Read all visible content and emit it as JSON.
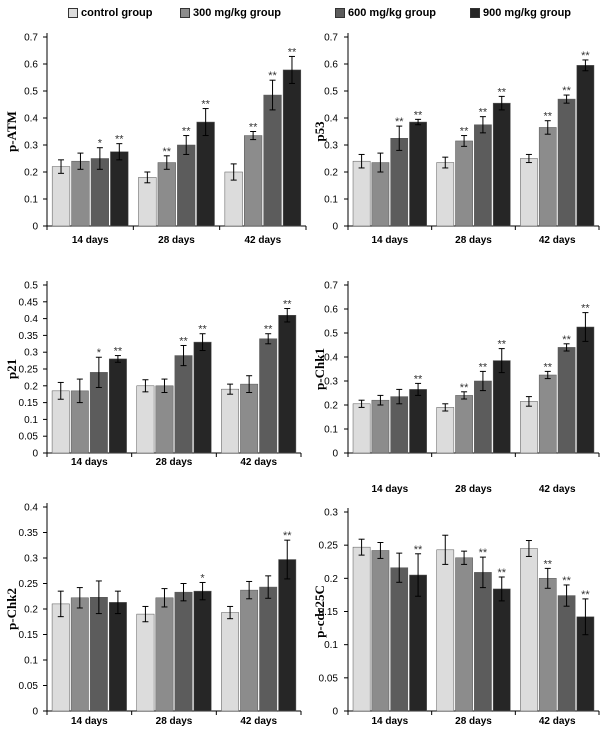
{
  "legend": [
    {
      "label": "control group",
      "color": "#dcdcdc"
    },
    {
      "label": "300 mg/kg group",
      "color": "#8c8c8c"
    },
    {
      "label": "600 mg/kg group",
      "color": "#5c5c5c"
    },
    {
      "label": "900 mg/kg group",
      "color": "#262626"
    }
  ],
  "chart_data": [
    {
      "type": "bar",
      "title": "",
      "ylabel": "p-ATM",
      "xlabel": "",
      "categories": [
        "14 days",
        "28 days",
        "42 days"
      ],
      "ylim": [
        0,
        0.7
      ],
      "yticks": [
        "0",
        "0.1",
        "0.2",
        "0.3",
        "0.4",
        "0.5",
        "0.6",
        "0.7"
      ],
      "series": [
        {
          "name": "control group",
          "values": [
            0.22,
            0.18,
            0.2
          ],
          "errors": [
            0.025,
            0.02,
            0.03
          ],
          "marks": [
            "",
            "",
            ""
          ]
        },
        {
          "name": "300 mg/kg group",
          "values": [
            0.24,
            0.235,
            0.335
          ],
          "errors": [
            0.03,
            0.025,
            0.015
          ],
          "marks": [
            "",
            "**",
            "**"
          ]
        },
        {
          "name": "600 mg/kg group",
          "values": [
            0.25,
            0.3,
            0.485
          ],
          "errors": [
            0.04,
            0.035,
            0.055
          ],
          "marks": [
            "*",
            "**",
            "**"
          ]
        },
        {
          "name": "900 mg/kg group",
          "values": [
            0.275,
            0.385,
            0.578
          ],
          "errors": [
            0.03,
            0.05,
            0.05
          ],
          "marks": [
            "**",
            "**",
            "**"
          ]
        }
      ]
    },
    {
      "type": "bar",
      "title": "",
      "ylabel": "p53",
      "xlabel": "",
      "categories": [
        "14 days",
        "28 days",
        "42 days"
      ],
      "ylim": [
        0,
        0.7
      ],
      "yticks": [
        "0",
        "0.1",
        "0.2",
        "0.3",
        "0.4",
        "0.5",
        "0.6",
        "0.7"
      ],
      "series": [
        {
          "name": "control group",
          "values": [
            0.24,
            0.235,
            0.25
          ],
          "errors": [
            0.025,
            0.02,
            0.015
          ],
          "marks": [
            "",
            "",
            ""
          ]
        },
        {
          "name": "300 mg/kg group",
          "values": [
            0.235,
            0.315,
            0.365
          ],
          "errors": [
            0.035,
            0.02,
            0.025
          ],
          "marks": [
            "",
            "**",
            "**"
          ]
        },
        {
          "name": "600 mg/kg group",
          "values": [
            0.325,
            0.375,
            0.47
          ],
          "errors": [
            0.045,
            0.03,
            0.015
          ],
          "marks": [
            "**",
            "**",
            "**"
          ]
        },
        {
          "name": "900 mg/kg group",
          "values": [
            0.385,
            0.455,
            0.595
          ],
          "errors": [
            0.01,
            0.025,
            0.02
          ],
          "marks": [
            "**",
            "**",
            "**"
          ]
        }
      ]
    },
    {
      "type": "bar",
      "title": "",
      "ylabel": "p21",
      "xlabel": "",
      "categories": [
        "14 days",
        "28 days",
        "42 days"
      ],
      "ylim": [
        0,
        0.5
      ],
      "yticks": [
        "0",
        "0.05",
        "0.1",
        "0.15",
        "0.2",
        "0.25",
        "0.3",
        "0.35",
        "0.4",
        "0.45",
        "0.5"
      ],
      "series": [
        {
          "name": "control group",
          "values": [
            0.185,
            0.2,
            0.19
          ],
          "errors": [
            0.025,
            0.018,
            0.015
          ],
          "marks": [
            "",
            "",
            ""
          ]
        },
        {
          "name": "300 mg/kg group",
          "values": [
            0.185,
            0.2,
            0.205
          ],
          "errors": [
            0.035,
            0.02,
            0.025
          ],
          "marks": [
            "",
            "",
            ""
          ]
        },
        {
          "name": "600 mg/kg group",
          "values": [
            0.24,
            0.29,
            0.34
          ],
          "errors": [
            0.045,
            0.03,
            0.015
          ],
          "marks": [
            "*",
            "**",
            "**"
          ]
        },
        {
          "name": "900 mg/kg group",
          "values": [
            0.28,
            0.33,
            0.41
          ],
          "errors": [
            0.01,
            0.025,
            0.02
          ],
          "marks": [
            "**",
            "**",
            "**"
          ]
        }
      ]
    },
    {
      "type": "bar",
      "title": "",
      "ylabel": "p-Chk1",
      "xlabel": "",
      "categories": [
        "14 days",
        "28 days",
        "42 days"
      ],
      "ylim": [
        0,
        0.7
      ],
      "yticks": [
        "0",
        "0.1",
        "0.2",
        "0.3",
        "0.4",
        "0.5",
        "0.6",
        "0.7"
      ],
      "series": [
        {
          "name": "control group",
          "values": [
            0.205,
            0.19,
            0.215
          ],
          "errors": [
            0.015,
            0.015,
            0.02
          ],
          "marks": [
            "",
            "",
            ""
          ]
        },
        {
          "name": "300 mg/kg group",
          "values": [
            0.22,
            0.24,
            0.325
          ],
          "errors": [
            0.02,
            0.015,
            0.015
          ],
          "marks": [
            "",
            "**",
            "**"
          ]
        },
        {
          "name": "600 mg/kg group",
          "values": [
            0.235,
            0.3,
            0.44
          ],
          "errors": [
            0.03,
            0.04,
            0.015
          ],
          "marks": [
            "",
            "**",
            "**"
          ]
        },
        {
          "name": "900 mg/kg group",
          "values": [
            0.265,
            0.385,
            0.525
          ],
          "errors": [
            0.025,
            0.05,
            0.06
          ],
          "marks": [
            "**",
            "**",
            "**"
          ]
        }
      ]
    },
    {
      "type": "bar",
      "title": "",
      "ylabel": "p-Chk2",
      "xlabel": "",
      "categories": [
        "14 days",
        "28 days",
        "42 days"
      ],
      "ylim": [
        0,
        0.4
      ],
      "yticks": [
        "0",
        "0.05",
        "0.1",
        "0.15",
        "0.2",
        "0.25",
        "0.3",
        "0.35",
        "0.4"
      ],
      "series": [
        {
          "name": "control group",
          "values": [
            0.21,
            0.19,
            0.193
          ],
          "errors": [
            0.025,
            0.015,
            0.012
          ],
          "marks": [
            "",
            "",
            ""
          ]
        },
        {
          "name": "300 mg/kg group",
          "values": [
            0.222,
            0.222,
            0.237
          ],
          "errors": [
            0.02,
            0.018,
            0.017
          ],
          "marks": [
            "",
            "",
            ""
          ]
        },
        {
          "name": "600 mg/kg group",
          "values": [
            0.223,
            0.233,
            0.243
          ],
          "errors": [
            0.032,
            0.017,
            0.022
          ],
          "marks": [
            "",
            "",
            ""
          ]
        },
        {
          "name": "900 mg/kg group",
          "values": [
            0.213,
            0.235,
            0.297
          ],
          "errors": [
            0.022,
            0.017,
            0.038
          ],
          "marks": [
            "",
            "*",
            "**"
          ]
        }
      ]
    },
    {
      "type": "bar",
      "title": "",
      "ylabel": "p-cdc25C",
      "xlabel": "",
      "categories": [
        "14 days",
        "28 days",
        "42 days"
      ],
      "ylim": [
        0,
        0.3
      ],
      "yticks": [
        "0",
        "0.05",
        "0.1",
        "0.15",
        "0.2",
        "0.25",
        "0.3"
      ],
      "series": [
        {
          "name": "control group",
          "values": [
            0.247,
            0.243,
            0.245
          ],
          "errors": [
            0.012,
            0.022,
            0.012
          ],
          "marks": [
            "",
            "",
            ""
          ]
        },
        {
          "name": "300 mg/kg group",
          "values": [
            0.242,
            0.231,
            0.2
          ],
          "errors": [
            0.012,
            0.01,
            0.015
          ],
          "marks": [
            "",
            "",
            "**"
          ]
        },
        {
          "name": "600 mg/kg group",
          "values": [
            0.216,
            0.209,
            0.174
          ],
          "errors": [
            0.022,
            0.023,
            0.016
          ],
          "marks": [
            "",
            "**",
            "**"
          ]
        },
        {
          "name": "900 mg/kg group",
          "values": [
            0.205,
            0.184,
            0.142
          ],
          "errors": [
            0.032,
            0.018,
            0.027
          ],
          "marks": [
            "**",
            "**",
            "**"
          ]
        }
      ]
    }
  ]
}
